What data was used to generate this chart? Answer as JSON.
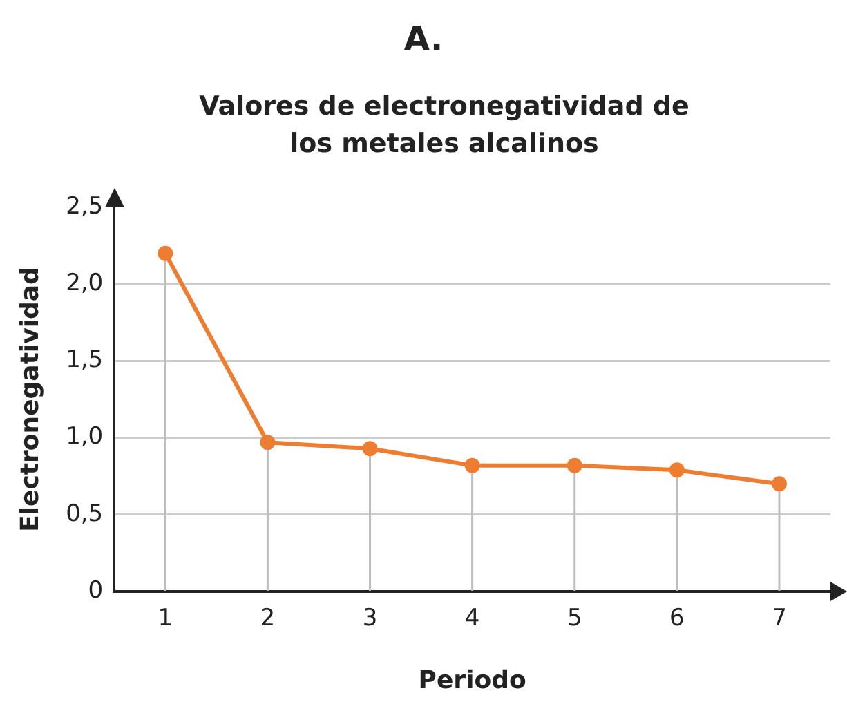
{
  "chart_data": {
    "type": "line",
    "title": "A.",
    "subtitle": "Valores de electronegatividad de los metales alcalinos",
    "xlabel": "Periodo",
    "ylabel": "Electronegatividad",
    "categories": [
      "1",
      "2",
      "3",
      "4",
      "5",
      "6",
      "7"
    ],
    "series": [
      {
        "color": "#ed7d31",
        "values": [
          2.2,
          0.97,
          0.93,
          0.82,
          0.82,
          0.79,
          0.7
        ],
        "errors": [
          [
            2.2,
            0
          ],
          [
            0.97,
            0
          ],
          [
            0.93,
            0
          ],
          [
            0.82,
            0
          ],
          [
            0.82,
            0
          ],
          [
            0.79,
            0
          ],
          [
            0.7,
            0
          ]
        ]
      }
    ],
    "ylim": [
      0,
      2.5
    ],
    "yticks": [
      0,
      {
        "value": 0.5,
        "label": "0,5"
      },
      {
        "value": 1,
        "label": "1,0"
      },
      {
        "value": 1.5,
        "label": "1,5"
      },
      {
        "value": 2,
        "label": "2,0"
      },
      {
        "value": 2.5,
        "label": "2,5"
      }
    ],
    "grid": "y",
    "legend": false,
    "marker": "circle",
    "line_style": "solid"
  }
}
